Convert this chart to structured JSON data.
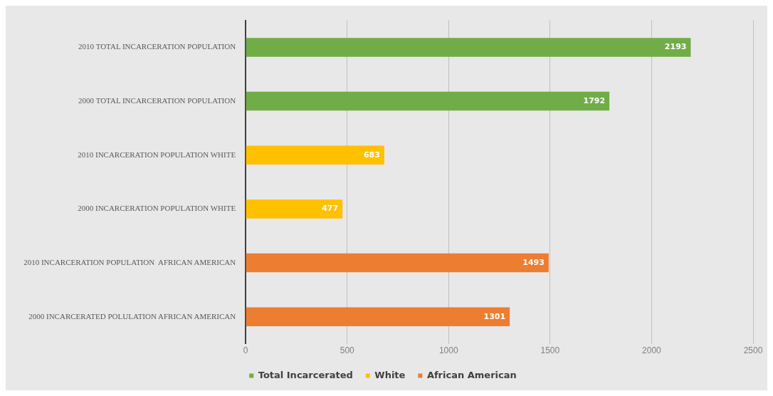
{
  "chart_data": {
    "type": "bar",
    "orientation": "horizontal",
    "categories": [
      "2010 TOTAL INCARCERATION POPULATION",
      "2000 TOTAL INCARCERATION POPULATION",
      "2010 INCARCERATION POPULATION WHITE",
      "2000 INCARCERATION POPULATION WHITE",
      "2010 INCARCERATION POPULATION  AFRICAN AMERICAN",
      "2000 INCARCERATED POLULATION AFRICAN AMERICAN"
    ],
    "series": [
      {
        "name": "Total Incarcerated",
        "color": "#70ad47",
        "values": [
          2193,
          1792,
          null,
          null,
          null,
          null
        ]
      },
      {
        "name": "White",
        "color": "#ffc000",
        "values": [
          null,
          null,
          683,
          477,
          null,
          null
        ]
      },
      {
        "name": "African American",
        "color": "#ed7d31",
        "values": [
          null,
          null,
          null,
          null,
          1493,
          1301
        ]
      }
    ],
    "xlim": [
      0,
      2500
    ],
    "xticks": [
      0,
      500,
      1000,
      1500,
      2000,
      2500
    ],
    "grid": "x",
    "legend": "bottom",
    "data_labels": true
  }
}
